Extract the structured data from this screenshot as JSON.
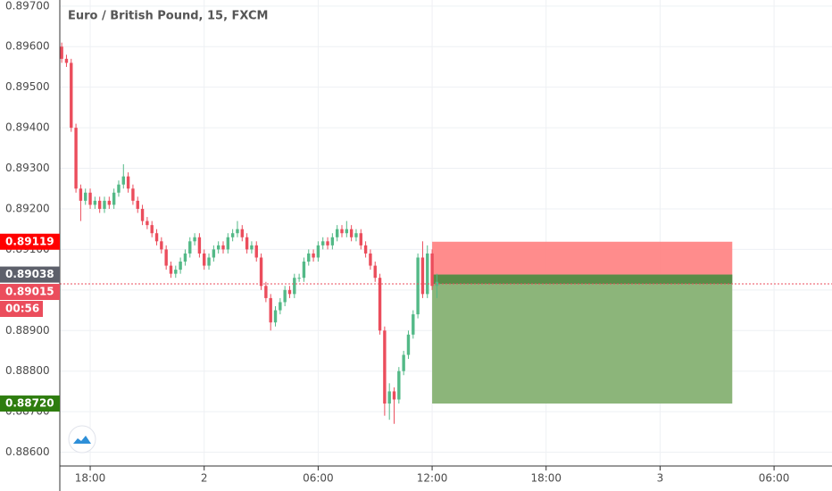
{
  "chart_data": {
    "type": "candlestick",
    "title": "Euro / British Pound, 15, FXCM",
    "up_color": "#53b987",
    "down_color": "#eb4d5c",
    "grid": true,
    "x": [
      -1.5,
      -1.25,
      -1,
      -0.75,
      -0.5,
      -0.25,
      0,
      0.25,
      0.5,
      0.75,
      1,
      1.25,
      1.5,
      1.75,
      2,
      2.25,
      2.5,
      2.75,
      3,
      3.25,
      3.5,
      3.75,
      4,
      4.25,
      4.5,
      4.75,
      5,
      5.25,
      5.5,
      5.75,
      6,
      6.25,
      6.5,
      6.75,
      7,
      7.25,
      7.5,
      7.75,
      8,
      8.25,
      8.5,
      8.75,
      9,
      9.25,
      9.5,
      9.75,
      10,
      10.25,
      10.5,
      10.75,
      11,
      11.25,
      11.5,
      11.75,
      12,
      12.25,
      12.5,
      12.75,
      13,
      13.25,
      13.5,
      13.75,
      14,
      14.25,
      14.5,
      14.75,
      15,
      15.25,
      15.5,
      15.75,
      16,
      16.25,
      16.5,
      16.75,
      17,
      17.25,
      17.5,
      17.75,
      18,
      18.25
    ],
    "open": [
      0.896,
      0.8957,
      0.8956,
      0.894,
      0.8925,
      0.8922,
      0.8924,
      0.8921,
      0.8922,
      0.892,
      0.8922,
      0.8921,
      0.8924,
      0.8926,
      0.8928,
      0.8925,
      0.8922,
      0.892,
      0.8917,
      0.8916,
      0.8914,
      0.8912,
      0.891,
      0.8906,
      0.8904,
      0.8905,
      0.8907,
      0.8909,
      0.8912,
      0.8913,
      0.8909,
      0.8906,
      0.8908,
      0.891,
      0.8911,
      0.891,
      0.8913,
      0.8914,
      0.8915,
      0.8913,
      0.891,
      0.8911,
      0.8908,
      0.8901,
      0.8898,
      0.8892,
      0.8895,
      0.8897,
      0.89,
      0.8899,
      0.8903,
      0.8903,
      0.8907,
      0.8909,
      0.8908,
      0.8911,
      0.8912,
      0.8911,
      0.8913,
      0.8915,
      0.8914,
      0.8915,
      0.8913,
      0.8914,
      0.8911,
      0.8909,
      0.8906,
      0.8903,
      0.889,
      0.8872,
      0.8875,
      0.8873,
      0.888,
      0.8884,
      0.8889,
      0.8894,
      0.8908,
      0.8899,
      0.8909,
      0.8901
    ],
    "high": [
      0.8961,
      0.8958,
      0.8957,
      0.8941,
      0.8926,
      0.8925,
      0.8925,
      0.8923,
      0.8923,
      0.8923,
      0.8923,
      0.8925,
      0.8927,
      0.8931,
      0.8929,
      0.8926,
      0.8923,
      0.8921,
      0.8918,
      0.8917,
      0.8915,
      0.8913,
      0.8911,
      0.8907,
      0.8906,
      0.8908,
      0.891,
      0.8913,
      0.8914,
      0.8914,
      0.891,
      0.8909,
      0.8911,
      0.8912,
      0.8912,
      0.8914,
      0.8915,
      0.8917,
      0.8916,
      0.8914,
      0.8912,
      0.8912,
      0.8909,
      0.8902,
      0.8899,
      0.8896,
      0.8898,
      0.8901,
      0.8901,
      0.8904,
      0.8904,
      0.8908,
      0.891,
      0.891,
      0.8912,
      0.8913,
      0.8913,
      0.8914,
      0.8916,
      0.8916,
      0.8917,
      0.8916,
      0.8915,
      0.8915,
      0.8912,
      0.891,
      0.8907,
      0.8904,
      0.8891,
      0.8877,
      0.8876,
      0.8881,
      0.8885,
      0.889,
      0.8895,
      0.8909,
      0.8912,
      0.8911,
      0.891,
      0.8904
    ],
    "low": [
      0.8956,
      0.8955,
      0.8939,
      0.8924,
      0.8917,
      0.8921,
      0.892,
      0.892,
      0.8919,
      0.8919,
      0.892,
      0.892,
      0.8923,
      0.8925,
      0.8924,
      0.8921,
      0.8919,
      0.8916,
      0.8915,
      0.8913,
      0.8911,
      0.8909,
      0.8905,
      0.8903,
      0.8903,
      0.8904,
      0.8906,
      0.8908,
      0.8911,
      0.8908,
      0.8905,
      0.8905,
      0.8907,
      0.8909,
      0.8909,
      0.8909,
      0.8912,
      0.8913,
      0.8912,
      0.8909,
      0.8909,
      0.8907,
      0.89,
      0.8897,
      0.889,
      0.8891,
      0.8894,
      0.8896,
      0.8898,
      0.8898,
      0.8902,
      0.8902,
      0.8906,
      0.8907,
      0.8907,
      0.891,
      0.891,
      0.891,
      0.8912,
      0.8913,
      0.8913,
      0.8912,
      0.8912,
      0.891,
      0.8908,
      0.8905,
      0.8902,
      0.8889,
      0.8869,
      0.8868,
      0.8867,
      0.8872,
      0.8879,
      0.8883,
      0.8888,
      0.8893,
      0.8898,
      0.8898,
      0.89,
      0.8898
    ],
    "close": [
      0.8957,
      0.8956,
      0.894,
      0.8925,
      0.8922,
      0.8924,
      0.8921,
      0.8922,
      0.892,
      0.8922,
      0.8921,
      0.8924,
      0.8926,
      0.8928,
      0.8925,
      0.8922,
      0.892,
      0.8917,
      0.8916,
      0.8914,
      0.8912,
      0.891,
      0.8906,
      0.8904,
      0.8905,
      0.8907,
      0.8909,
      0.8912,
      0.8913,
      0.8909,
      0.8906,
      0.8908,
      0.891,
      0.8911,
      0.891,
      0.8913,
      0.8914,
      0.8915,
      0.8913,
      0.891,
      0.8911,
      0.8908,
      0.8901,
      0.8898,
      0.8892,
      0.8895,
      0.8897,
      0.89,
      0.8899,
      0.8903,
      0.8903,
      0.8907,
      0.8909,
      0.8908,
      0.8911,
      0.8912,
      0.8911,
      0.8913,
      0.8915,
      0.8914,
      0.8915,
      0.8913,
      0.8914,
      0.8911,
      0.8909,
      0.8906,
      0.8903,
      0.889,
      0.8872,
      0.8875,
      0.8873,
      0.888,
      0.8884,
      0.8889,
      0.8894,
      0.8908,
      0.8899,
      0.8909,
      0.8901,
      0.8902
    ],
    "xlim": [
      -1.6,
      39.05
    ],
    "xticks": [
      {
        "value": 0,
        "label": "18:00"
      },
      {
        "value": 6,
        "label": "2"
      },
      {
        "value": 12,
        "label": "06:00"
      },
      {
        "value": 18,
        "label": "12:00"
      },
      {
        "value": 24,
        "label": "18:00"
      },
      {
        "value": 30,
        "label": "3"
      },
      {
        "value": 36,
        "label": "06:00"
      }
    ],
    "ylim": [
      0.88566,
      0.89715
    ],
    "yticks": [
      {
        "value": 0.897,
        "label": "0.89700"
      },
      {
        "value": 0.896,
        "label": "0.89600"
      },
      {
        "value": 0.895,
        "label": "0.89500"
      },
      {
        "value": 0.894,
        "label": "0.89400"
      },
      {
        "value": 0.893,
        "label": "0.89300"
      },
      {
        "value": 0.892,
        "label": "0.89200"
      },
      {
        "value": 0.891,
        "label": "0.89100"
      },
      {
        "value": 0.89,
        "label": "0.89000"
      },
      {
        "value": 0.889,
        "label": "0.88900"
      },
      {
        "value": 0.888,
        "label": "0.88800"
      },
      {
        "value": 0.887,
        "label": "0.88700"
      },
      {
        "value": 0.886,
        "label": "0.88600"
      }
    ],
    "position": {
      "x_start": 18,
      "x_end": 33.8,
      "entry": 0.89038,
      "stop": 0.89119,
      "target": {
        "value": 0.8872,
        "label": "0.88720"
      },
      "stop_color": "#ff8080",
      "target_color": "#8cb57a",
      "entry_color": "#5a8c48"
    },
    "current_price": 0.89015,
    "countdown": "00:56"
  }
}
